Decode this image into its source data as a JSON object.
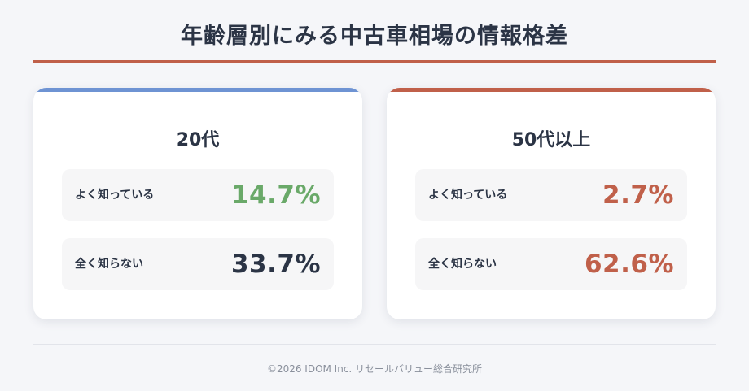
{
  "title": "年齢層別にみる中古車相場の情報格差",
  "colors": {
    "accent_young": "#6e93d3",
    "accent_old": "#c0604a",
    "value_green": "#6aa969",
    "value_dark": "#2b3445",
    "value_red": "#c0604a"
  },
  "chart_data": {
    "type": "table",
    "title": "年齢層別にみる中古車相場の情報格差",
    "unit": "%",
    "groups": [
      {
        "name": "20代",
        "rows": [
          {
            "label": "よく知っている",
            "value": 14.7,
            "display": "14.7%",
            "color": "#6aa969"
          },
          {
            "label": "全く知らない",
            "value": 33.7,
            "display": "33.7%",
            "color": "#2b3445"
          }
        ]
      },
      {
        "name": "50代以上",
        "rows": [
          {
            "label": "よく知っている",
            "value": 2.7,
            "display": "2.7%",
            "color": "#c0604a"
          },
          {
            "label": "全く知らない",
            "value": 62.6,
            "display": "62.6%",
            "color": "#c0604a"
          }
        ]
      }
    ]
  },
  "footer": "©2026 IDOM Inc. リセールバリュー総合研究所"
}
